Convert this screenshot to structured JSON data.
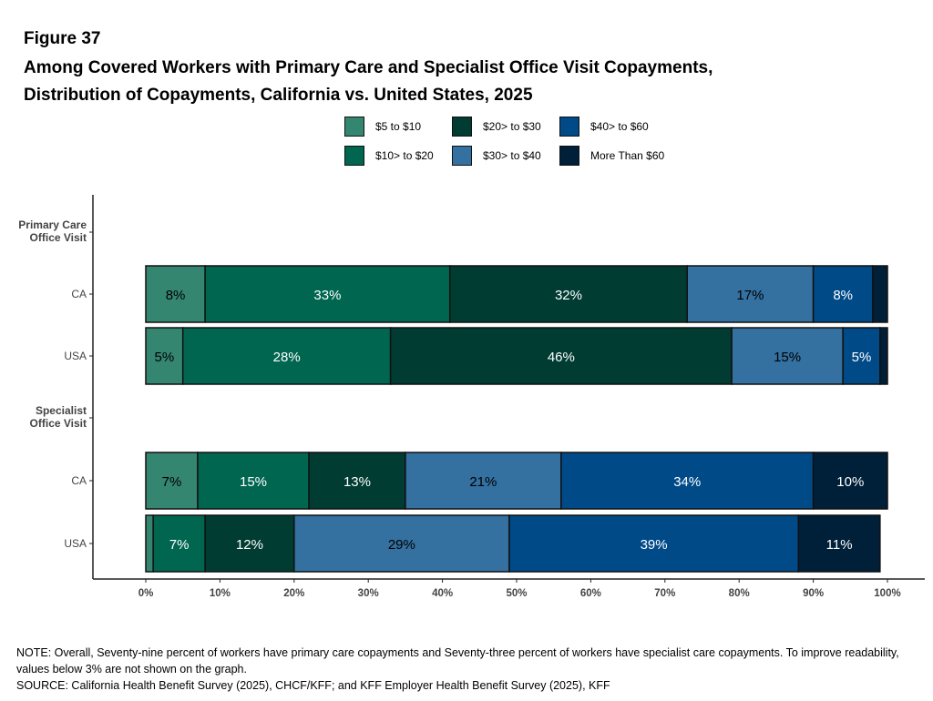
{
  "figure_label": "Figure 37",
  "title_line1": "Among Covered Workers with Primary Care and Specialist Office Visit Copayments,",
  "title_line2": "Distribution of Copayments, California vs. United States, 2025",
  "chart_data": {
    "type": "bar",
    "orientation": "horizontal",
    "stacked": true,
    "xlim": [
      0,
      100
    ],
    "x_ticks": [
      "0%",
      "10%",
      "20%",
      "30%",
      "40%",
      "50%",
      "60%",
      "70%",
      "80%",
      "90%",
      "100%"
    ],
    "legend_placement": "top",
    "grid": false,
    "groups": [
      "Primary Care Office Visit",
      "Specialist Office Visit"
    ],
    "rows": [
      {
        "group": "Primary Care Office Visit",
        "label": "CA"
      },
      {
        "group": "Primary Care Office Visit",
        "label": "USA"
      },
      {
        "group": "Specialist Office Visit",
        "label": "CA"
      },
      {
        "group": "Specialist Office Visit",
        "label": "USA"
      }
    ],
    "series": [
      {
        "name": "$5 to $10",
        "color": "#358671",
        "text_color": "#000000",
        "values": [
          8,
          5,
          7,
          1
        ]
      },
      {
        "name": "$10> to $20",
        "color": "#006650",
        "text_color": "#ffffff",
        "values": [
          33,
          28,
          15,
          7
        ]
      },
      {
        "name": "$20> to $30",
        "color": "#003c32",
        "text_color": "#ffffff",
        "values": [
          32,
          46,
          13,
          12
        ]
      },
      {
        "name": "$30> to $40",
        "color": "#3470a0",
        "text_color": "#000000",
        "values": [
          17,
          15,
          21,
          29
        ]
      },
      {
        "name": "$40> to $60",
        "color": "#004a88",
        "text_color": "#ffffff",
        "values": [
          8,
          5,
          34,
          39
        ]
      },
      {
        "name": "More Than $60",
        "color": "#001f38",
        "text_color": "#ffffff",
        "values": [
          2,
          1,
          10,
          11
        ]
      }
    ],
    "label_threshold": 3
  },
  "note": "NOTE: Overall, Seventy-nine percent of workers have primary care copayments and Seventy-three percent of workers have specialist care copayments. To improve readability, values below 3% are not shown on the graph.",
  "source": "SOURCE: California Health Benefit Survey (2025), CHCF/KFF; and KFF Employer Health Benefit Survey (2025), KFF"
}
